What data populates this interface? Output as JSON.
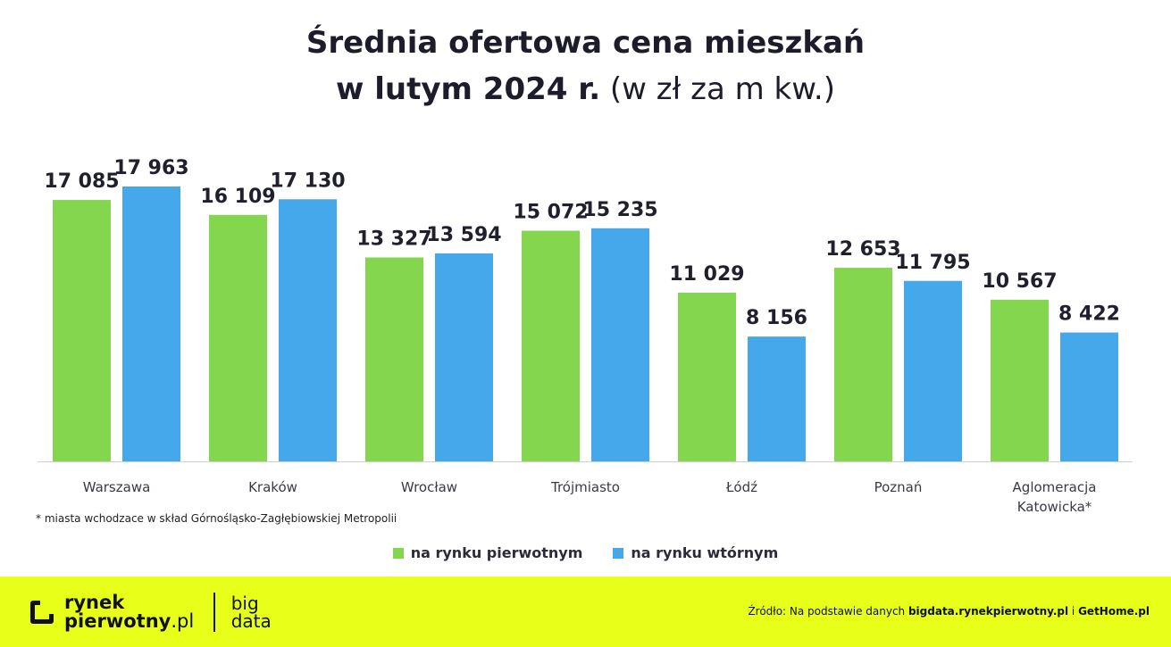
{
  "title": {
    "line1": "Średnia ofertowa cena mieszkań",
    "line2_bold": "w lutym 2024 r.",
    "line2_normal": " (w zł za m kw.)"
  },
  "colors": {
    "primary": "#84d64f",
    "secondary": "#44a8ea",
    "footer": "#e8ff1a",
    "label": "#1f1f2e"
  },
  "chart_data": {
    "type": "bar",
    "title": "Średnia ofertowa cena mieszkań w lutym 2024 r. (w zł za m kw.)",
    "categories": [
      "Warszawa",
      "Kraków",
      "Wrocław",
      "Trójmiasto",
      "Łódź",
      "Poznań",
      "Aglomeracja Katowicka*"
    ],
    "category_lines": [
      [
        "Warszawa"
      ],
      [
        "Kraków"
      ],
      [
        "Wrocław"
      ],
      [
        "Trójmiasto"
      ],
      [
        "Łódź"
      ],
      [
        "Poznań"
      ],
      [
        "Aglomeracja",
        "Katowicka*"
      ]
    ],
    "series": [
      {
        "name": "na rynku pierwotnym",
        "values": [
          17085,
          16109,
          13327,
          15072,
          11029,
          12653,
          10567
        ]
      },
      {
        "name": "na rynku wtórnym",
        "values": [
          17963,
          17130,
          13594,
          15235,
          8156,
          11795,
          8422
        ]
      }
    ],
    "value_labels": [
      [
        "17 085",
        "16 109",
        "13 327",
        "15 072",
        "11 029",
        "12 653",
        "10 567"
      ],
      [
        "17 963",
        "17 130",
        "13 594",
        "15 235",
        "8 156",
        "11 795",
        "8 422"
      ]
    ],
    "ylim": [
      0,
      18000
    ],
    "grid": false,
    "legend_position": "bottom"
  },
  "footnote": "* miasta wchodzace w skład Górnośląsko-Zagłębiowskiej Metropolii",
  "legend": {
    "primary": "na rynku pierwotnym",
    "secondary": "na rynku wtórnym"
  },
  "footer": {
    "logo_line1": "rynek",
    "logo_line2_bold": "pierwotny",
    "logo_line2_light": ".pl",
    "bigdata_line1": "big",
    "bigdata_line2": "data",
    "source_prefix": "Źródło: Na podstawie danych ",
    "source_site1": "bigdata.rynekpierwotny.pl",
    "source_join": " i ",
    "source_site2": "GetHome.pl"
  }
}
